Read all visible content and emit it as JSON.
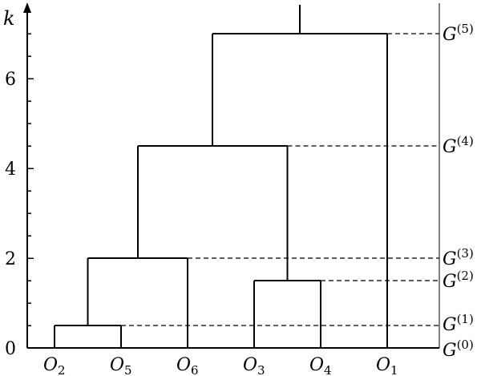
{
  "chart_data": {
    "type": "dendrogram",
    "ylabel": "k",
    "ylim": [
      0,
      7.5
    ],
    "y_ticks_major": [
      0,
      2,
      4,
      6
    ],
    "y_ticks_minor": [
      0.5,
      1,
      1.5,
      2.5,
      3,
      3.5,
      4.5,
      5,
      5.5,
      6.5,
      7
    ],
    "leaves": [
      {
        "id": "O2",
        "name": "O",
        "sub": "2"
      },
      {
        "id": "O5",
        "name": "O",
        "sub": "5"
      },
      {
        "id": "O6",
        "name": "O",
        "sub": "6"
      },
      {
        "id": "O3",
        "name": "O",
        "sub": "3"
      },
      {
        "id": "O4",
        "name": "O",
        "sub": "4"
      },
      {
        "id": "O1",
        "name": "O",
        "sub": "1"
      }
    ],
    "merges": [
      {
        "id": "m1",
        "left": "O2",
        "right": "O5",
        "height": 0.5
      },
      {
        "id": "m2",
        "left": "m1",
        "right": "O6",
        "height": 2.0
      },
      {
        "id": "m3",
        "left": "O3",
        "right": "O4",
        "height": 1.5
      },
      {
        "id": "m4",
        "left": "m2",
        "right": "m3",
        "height": 4.5
      },
      {
        "id": "m5",
        "left": "m4",
        "right": "O1",
        "height": 7.0
      }
    ],
    "levels": [
      {
        "name": "G",
        "sup": "(0)",
        "height": 0
      },
      {
        "name": "G",
        "sup": "(1)",
        "height": 0.5
      },
      {
        "name": "G",
        "sup": "(2)",
        "height": 1.5
      },
      {
        "name": "G",
        "sup": "(3)",
        "height": 2.0
      },
      {
        "name": "G",
        "sup": "(4)",
        "height": 4.5
      },
      {
        "name": "G",
        "sup": "(5)",
        "height": 7.0
      }
    ]
  }
}
